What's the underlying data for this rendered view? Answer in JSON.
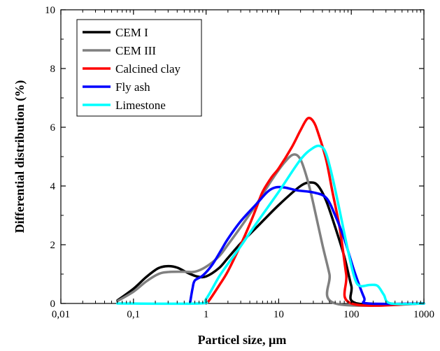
{
  "chart_data": {
    "type": "line",
    "title": "",
    "xlabel": "Particel size, µm",
    "ylabel": "Differential distribution (%)",
    "xscale": "log",
    "xlim": [
      0.01,
      1000
    ],
    "ylim": [
      0,
      10
    ],
    "x_ticks": [
      0.01,
      0.1,
      1,
      10,
      100,
      1000
    ],
    "x_tick_labels": [
      "0,01",
      "0,1",
      "1",
      "10",
      "100",
      "1000"
    ],
    "y_ticks": [
      0,
      2,
      4,
      6,
      8,
      10
    ],
    "y_tick_labels": [
      "0",
      "2",
      "4",
      "6",
      "8",
      "10"
    ],
    "grid": false,
    "legend_position": "top-left",
    "series": [
      {
        "name": "CEM I",
        "color": "#000000",
        "points": [
          [
            0.06,
            0.1
          ],
          [
            0.1,
            0.5
          ],
          [
            0.15,
            0.9
          ],
          [
            0.22,
            1.2
          ],
          [
            0.3,
            1.27
          ],
          [
            0.4,
            1.22
          ],
          [
            0.55,
            1.05
          ],
          [
            0.75,
            0.92
          ],
          [
            1.0,
            0.92
          ],
          [
            1.5,
            1.2
          ],
          [
            2.0,
            1.55
          ],
          [
            3.0,
            2.05
          ],
          [
            5.0,
            2.6
          ],
          [
            10.0,
            3.35
          ],
          [
            20.0,
            4.0
          ],
          [
            28.0,
            4.12
          ],
          [
            35.0,
            4.0
          ],
          [
            45.0,
            3.5
          ],
          [
            60.0,
            2.6
          ],
          [
            80.0,
            1.6
          ],
          [
            100.0,
            0.6
          ],
          [
            120.0,
            0.0
          ],
          [
            1000.0,
            0.0
          ]
        ]
      },
      {
        "name": "CEM III",
        "color": "#808080",
        "points": [
          [
            0.06,
            0.08
          ],
          [
            0.1,
            0.4
          ],
          [
            0.15,
            0.75
          ],
          [
            0.22,
            1.0
          ],
          [
            0.3,
            1.07
          ],
          [
            0.5,
            1.08
          ],
          [
            0.7,
            1.08
          ],
          [
            1.0,
            1.25
          ],
          [
            1.5,
            1.6
          ],
          [
            2.0,
            2.0
          ],
          [
            3.0,
            2.6
          ],
          [
            5.0,
            3.4
          ],
          [
            8.0,
            4.2
          ],
          [
            12.0,
            4.8
          ],
          [
            16.0,
            5.07
          ],
          [
            20.0,
            4.9
          ],
          [
            25.0,
            4.2
          ],
          [
            30.0,
            3.4
          ],
          [
            40.0,
            2.0
          ],
          [
            50.0,
            1.0
          ],
          [
            60.0,
            0.0
          ],
          [
            1000.0,
            0.0
          ]
        ]
      },
      {
        "name": "Calcined clay",
        "color": "#ff0000",
        "points": [
          [
            1.0,
            0.0
          ],
          [
            1.1,
            0.1
          ],
          [
            1.5,
            0.6
          ],
          [
            2.0,
            1.1
          ],
          [
            3.0,
            2.0
          ],
          [
            4.0,
            2.7
          ],
          [
            5.0,
            3.3
          ],
          [
            6.0,
            3.8
          ],
          [
            8.0,
            4.3
          ],
          [
            10.0,
            4.6
          ],
          [
            15.0,
            5.3
          ],
          [
            20.0,
            5.9
          ],
          [
            25.0,
            6.3
          ],
          [
            30.0,
            6.2
          ],
          [
            35.0,
            5.8
          ],
          [
            45.0,
            4.9
          ],
          [
            55.0,
            3.8
          ],
          [
            70.0,
            2.5
          ],
          [
            85.0,
            1.0
          ],
          [
            100.0,
            0.0
          ],
          [
            1000.0,
            0.0
          ]
        ]
      },
      {
        "name": "Fly ash",
        "color": "#0000ff",
        "points": [
          [
            0.6,
            0.0
          ],
          [
            0.65,
            0.5
          ],
          [
            0.7,
            0.78
          ],
          [
            0.9,
            0.95
          ],
          [
            1.2,
            1.3
          ],
          [
            1.6,
            1.8
          ],
          [
            2.0,
            2.2
          ],
          [
            3.0,
            2.8
          ],
          [
            5.0,
            3.4
          ],
          [
            7.0,
            3.8
          ],
          [
            9.0,
            3.95
          ],
          [
            12.0,
            3.95
          ],
          [
            18.0,
            3.85
          ],
          [
            30.0,
            3.78
          ],
          [
            45.0,
            3.6
          ],
          [
            60.0,
            3.0
          ],
          [
            80.0,
            2.2
          ],
          [
            110.0,
            1.1
          ],
          [
            150.0,
            0.2
          ],
          [
            170.0,
            0.0
          ],
          [
            1000.0,
            0.0
          ]
        ]
      },
      {
        "name": "Limestone",
        "color": "#00ffff",
        "points": [
          [
            0.06,
            0.0
          ],
          [
            0.8,
            0.0
          ],
          [
            1.0,
            0.15
          ],
          [
            1.5,
            0.9
          ],
          [
            2.0,
            1.35
          ],
          [
            3.0,
            1.95
          ],
          [
            5.0,
            2.75
          ],
          [
            10.0,
            3.8
          ],
          [
            20.0,
            4.9
          ],
          [
            30.0,
            5.3
          ],
          [
            38.0,
            5.35
          ],
          [
            45.0,
            5.1
          ],
          [
            55.0,
            4.3
          ],
          [
            70.0,
            3.1
          ],
          [
            90.0,
            1.8
          ],
          [
            110.0,
            0.9
          ],
          [
            130.0,
            0.6
          ],
          [
            180.0,
            0.63
          ],
          [
            230.0,
            0.6
          ],
          [
            280.0,
            0.3
          ],
          [
            350.0,
            0.0
          ],
          [
            1000.0,
            0.0
          ]
        ]
      }
    ]
  }
}
